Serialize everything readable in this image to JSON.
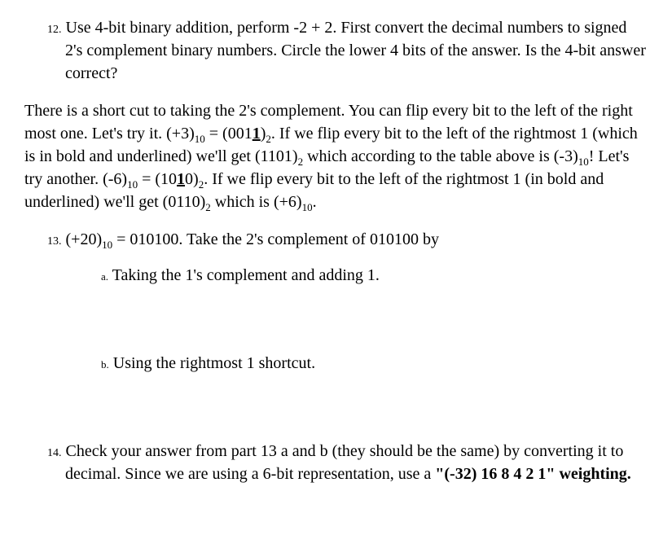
{
  "q12": {
    "num": "12.",
    "text_a": "Use 4-bit binary addition, perform -2 + 2. First convert the decimal numbers to signed 2's complement binary numbers.  Circle the lower 4 bits of the answer.  Is the 4-bit answer correct?"
  },
  "passage": {
    "seg1": "There is a short cut to taking the 2's complement.   You can flip every bit to the left of the right most one.  Let's try it.  (+3)",
    "sub1": "10",
    "seg2": " = (001",
    "bu1": "1",
    "seg3": ")",
    "sub2": "2",
    "seg4": ".  If we flip every bit to the left of the rightmost 1 (which is in bold and underlined) we'll get (1101)",
    "sub3": "2",
    "seg5": " which according to the table above is (-3)",
    "sub4": "10",
    "seg6": "!  Let's try another.  (-6)",
    "sub5": "10",
    "seg7": " = (10",
    "bu2": "1",
    "seg8": "0)",
    "sub6": "2",
    "seg9": ".  If we flip every bit to the left of the rightmost 1 (in bold and underlined) we'll get (0110)",
    "sub7": "2",
    "seg10": " which is (+6)",
    "sub8": "10",
    "seg11": "."
  },
  "q13": {
    "num": "13.",
    "seg1": "(+20)",
    "sub1": "10",
    "seg2": " = 010100. Take the 2's complement of 010100 by"
  },
  "q13a": {
    "letter": "a.",
    "text": "Taking the 1's complement and adding 1."
  },
  "q13b": {
    "letter": "b.",
    "text": "Using the rightmost 1 shortcut."
  },
  "q14": {
    "num": "14.",
    "seg1": "Check your answer from part 13 a and b (they should be the same) by converting it to decimal.   Since we are using a 6-bit representation, use a ",
    "bold1": "\"(-32) 16 8 4 2 1\" weighting."
  }
}
